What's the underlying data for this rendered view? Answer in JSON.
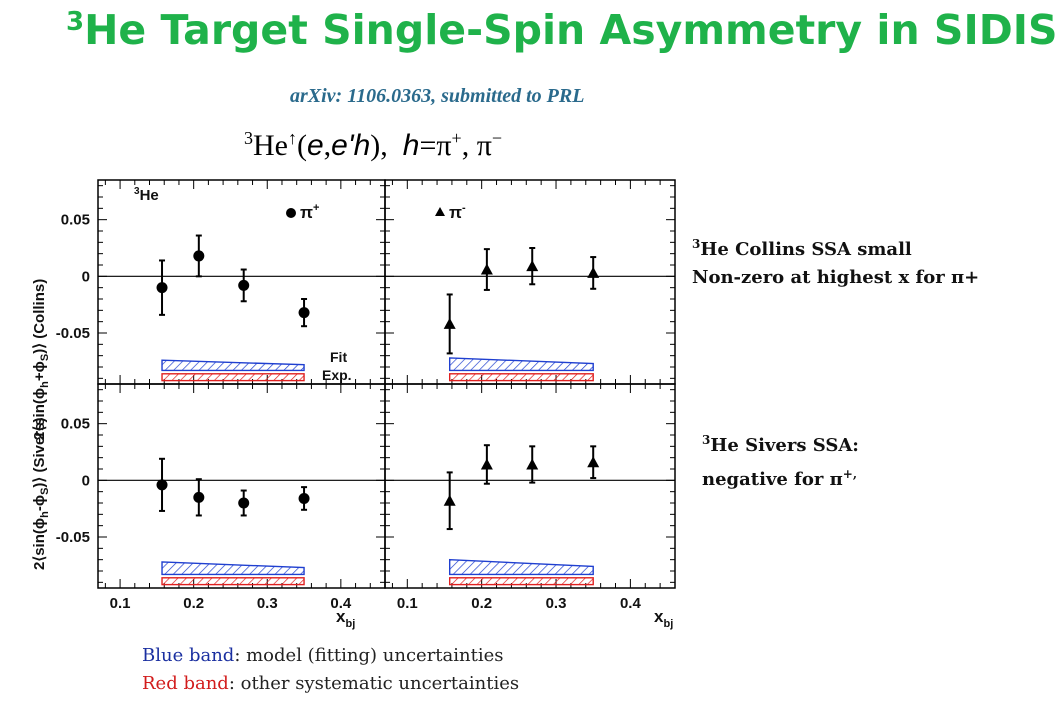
{
  "header": {
    "title_sup": "3",
    "title_text": "He Target Single-Spin Asymmetry in SIDIS",
    "citation": "arXiv: 1106.0363, submitted to PRL",
    "reaction": {
      "target_sup": "3",
      "target": "He",
      "target_arrow": "↑",
      "paren_open": "(",
      "beam": "e",
      "comma1": ",",
      "scattered": "e'",
      "hadron": "h",
      "paren_close": "),",
      "h_label": "h",
      "equals": "=",
      "pi_plus": "π",
      "pi_plus_sup": "+",
      "sep": ",",
      "pi_minus": "π",
      "pi_minus_sup": "−"
    }
  },
  "notes": {
    "collins_sup": "3",
    "collins_line1": "He Collins SSA small",
    "collins_line2": "Non-zero at highest x for π+",
    "sivers_sup": "3",
    "sivers_line1": "He Sivers SSA:",
    "sivers_line2": "negative for π",
    "sivers_line2_sup": "+,"
  },
  "legend": {
    "blue_label": "Blue band",
    "blue_text": ": model (fitting) uncertainties",
    "red_label": "Red band",
    "red_text": ": other systematic uncertainties"
  },
  "chart_data": {
    "type": "scatter",
    "x_label": "x",
    "x_label_sub": "bj",
    "x_ticks": [
      "0.1",
      "0.2",
      "0.3",
      "0.4"
    ],
    "xlim": [
      0.07,
      0.46
    ],
    "ylim": [
      -0.095,
      0.085
    ],
    "y_ticks": [
      "0.05",
      "0",
      "-0.05"
    ],
    "y_label_collins": "2⟨sin(ϕ",
    "y_label_collins_sub": "h",
    "y_label_collins_mid": "+ϕ",
    "y_label_collins_sub2": "S",
    "y_label_collins_end": ")⟩ (Collins)",
    "y_label_sivers": "2⟨sin(ϕ",
    "y_label_sivers_sub": "h",
    "y_label_sivers_mid": "-ϕ",
    "y_label_sivers_sub2": "S",
    "y_label_sivers_end": ")⟩ (Sivers)",
    "target_label_sup": "3",
    "target_label": "He",
    "series_plus": "π",
    "series_plus_sup": "+",
    "series_minus": "π",
    "series_minus_sup": "-",
    "band_fit_label": "Fit",
    "band_exp_label": "Exp.",
    "colors": {
      "blue_band": "#1f3fd0",
      "red_band": "#e02020",
      "marker": "#000000"
    },
    "panels": [
      {
        "id": "collins-pi-plus",
        "marker": "circle",
        "points": [
          {
            "x": 0.157,
            "y": -0.01,
            "err": 0.024
          },
          {
            "x": 0.207,
            "y": 0.018,
            "err": 0.018
          },
          {
            "x": 0.268,
            "y": -0.008,
            "err": 0.014
          },
          {
            "x": 0.35,
            "y": -0.032,
            "err": 0.012
          }
        ],
        "fit_band": {
          "x0": 0.157,
          "x1": 0.35,
          "upper0": -0.074,
          "upper1": -0.078,
          "lower": -0.083
        },
        "exp_band": {
          "x0": 0.157,
          "x1": 0.35,
          "upper": -0.086,
          "lower": -0.092
        }
      },
      {
        "id": "collins-pi-minus",
        "marker": "triangle",
        "points": [
          {
            "x": 0.157,
            "y": -0.042,
            "err": 0.026
          },
          {
            "x": 0.207,
            "y": 0.006,
            "err": 0.018
          },
          {
            "x": 0.268,
            "y": 0.009,
            "err": 0.016
          },
          {
            "x": 0.35,
            "y": 0.003,
            "err": 0.014
          }
        ],
        "fit_band": {
          "x0": 0.157,
          "x1": 0.35,
          "upper0": -0.072,
          "upper1": -0.077,
          "lower": -0.083
        },
        "exp_band": {
          "x0": 0.157,
          "x1": 0.35,
          "upper": -0.086,
          "lower": -0.092
        }
      },
      {
        "id": "sivers-pi-plus",
        "marker": "circle",
        "points": [
          {
            "x": 0.157,
            "y": -0.004,
            "err": 0.023
          },
          {
            "x": 0.207,
            "y": -0.015,
            "err": 0.016
          },
          {
            "x": 0.268,
            "y": -0.02,
            "err": 0.011
          },
          {
            "x": 0.35,
            "y": -0.016,
            "err": 0.01
          }
        ],
        "fit_band": {
          "x0": 0.157,
          "x1": 0.35,
          "upper0": -0.072,
          "upper1": -0.077,
          "lower": -0.083
        },
        "exp_band": {
          "x0": 0.157,
          "x1": 0.35,
          "upper": -0.086,
          "lower": -0.092
        }
      },
      {
        "id": "sivers-pi-minus",
        "marker": "triangle",
        "points": [
          {
            "x": 0.157,
            "y": -0.018,
            "err": 0.025
          },
          {
            "x": 0.207,
            "y": 0.014,
            "err": 0.017
          },
          {
            "x": 0.268,
            "y": 0.014,
            "err": 0.016
          },
          {
            "x": 0.35,
            "y": 0.016,
            "err": 0.014
          }
        ],
        "fit_band": {
          "x0": 0.157,
          "x1": 0.35,
          "upper0": -0.07,
          "upper1": -0.076,
          "lower": -0.083
        },
        "exp_band": {
          "x0": 0.157,
          "x1": 0.35,
          "upper": -0.086,
          "lower": -0.092
        }
      }
    ]
  }
}
